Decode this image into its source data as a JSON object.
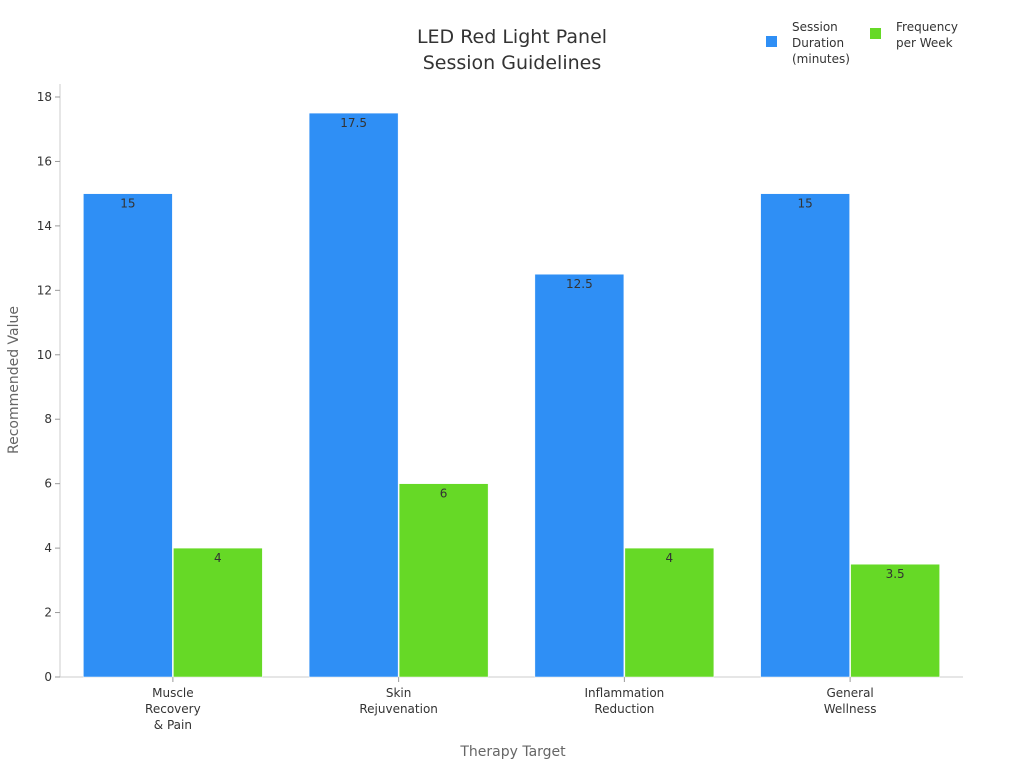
{
  "chart_data": {
    "type": "bar",
    "title": [
      "LED Red Light Panel",
      "Session Guidelines"
    ],
    "xlabel": "Therapy Target",
    "ylabel": "Recommended Value",
    "ylim": [
      0,
      18
    ],
    "yticks": [
      0,
      2,
      4,
      6,
      8,
      10,
      12,
      14,
      16,
      18
    ],
    "grid": false,
    "legend_position": "top-right",
    "categories": [
      [
        "Muscle",
        "Recovery",
        "& Pain"
      ],
      [
        "Skin",
        "Rejuvenation"
      ],
      [
        "Inflammation",
        "Reduction"
      ],
      [
        "General",
        "Wellness"
      ]
    ],
    "series": [
      {
        "name": [
          "Session",
          "Duration",
          "(minutes)"
        ],
        "color": "#2f8ff5",
        "values": [
          15,
          17.5,
          12.5,
          15
        ]
      },
      {
        "name": [
          "Frequency",
          "per Week"
        ],
        "color": "#66d926",
        "values": [
          4,
          6,
          4,
          3.5
        ]
      }
    ]
  }
}
